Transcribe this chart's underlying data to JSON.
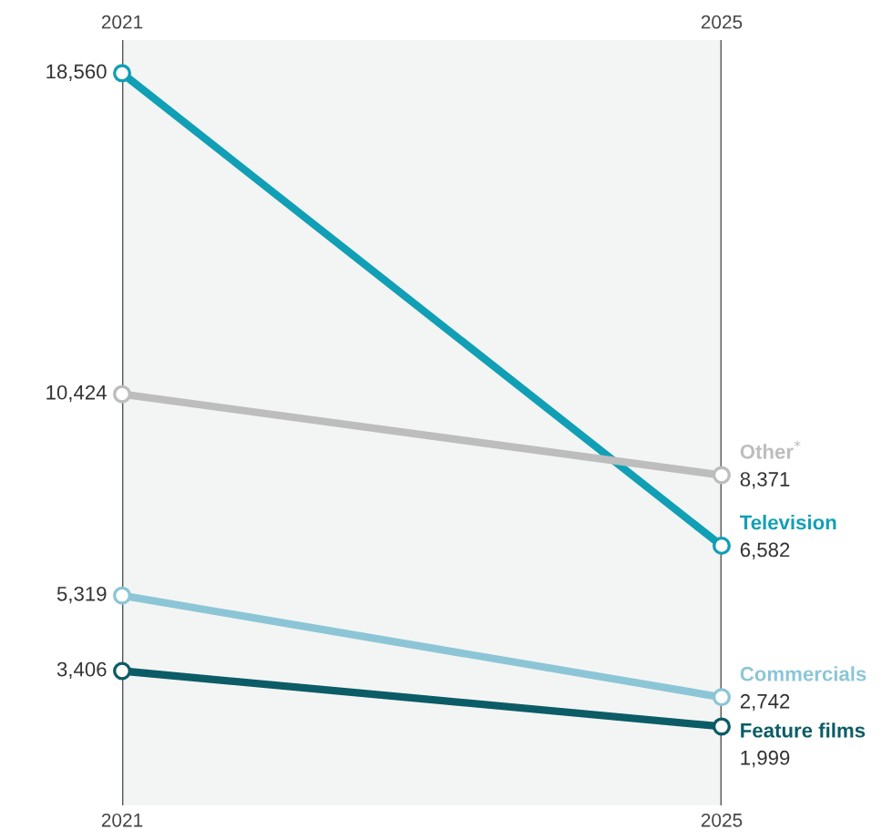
{
  "chart_data": {
    "type": "line",
    "categories": [
      "2021",
      "2025"
    ],
    "ylim": [
      0,
      19400
    ],
    "legend": false,
    "grid": "x",
    "marker": "circle",
    "line_style": "solid",
    "bands": [
      {
        "axis": "x",
        "from": "2021",
        "to": "2025",
        "color": "#f3f5f4"
      }
    ],
    "series": [
      {
        "name": "Television",
        "color": "#119fb6",
        "values": [
          18560,
          6582
        ],
        "value_labels": [
          "18,560",
          "6,582"
        ]
      },
      {
        "name": "Other$^{*}$",
        "color": "#bdbdbd",
        "values": [
          10424,
          8371
        ],
        "value_labels": [
          "10,424",
          "8,371"
        ]
      },
      {
        "name": "Commercials",
        "color": "#8cc6d6",
        "values": [
          5319,
          2742
        ],
        "value_labels": [
          "5,319",
          "2,742"
        ]
      },
      {
        "name": "Feature films",
        "color": "#0b5c66",
        "values": [
          3406,
          1999
        ],
        "value_labels": [
          "3,406",
          "1,999"
        ]
      }
    ]
  }
}
